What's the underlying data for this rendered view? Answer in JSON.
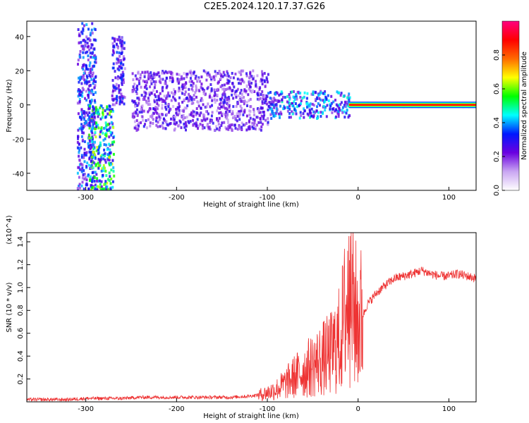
{
  "title": "C2E5.2024.120.17.37.G26",
  "chart_data": [
    {
      "type": "heatmap",
      "xlabel": "Height of straight line (km)",
      "ylabel": "Frequency (Hz)",
      "xlim": [
        -365,
        130
      ],
      "ylim": [
        -50,
        49
      ],
      "xticks": [
        -300,
        -200,
        -100,
        0,
        100
      ],
      "yticks": [
        -40,
        -20,
        0,
        20,
        40
      ],
      "colorbar": {
        "label": "Normalized spectral amplitude",
        "range": [
          0.0,
          1.0
        ],
        "ticks": [
          "0.0",
          "0.2",
          "0.4",
          "0.6",
          "0.8"
        ],
        "colors": [
          "#ffffff",
          "#c9a6f2",
          "#6a00e0",
          "#0018ff",
          "#00ffff",
          "#00ff00",
          "#ffff00",
          "#ff6a00",
          "#ff0000",
          "#ff007f"
        ]
      },
      "features": [
        {
          "x_range": [
            -310,
            -290
          ],
          "y_range": [
            -50,
            48
          ],
          "amplitude": 0.35
        },
        {
          "x_range": [
            -298,
            -270
          ],
          "y_range": [
            -50,
            0
          ],
          "amplitude": 0.55
        },
        {
          "x_range": [
            -272,
            -258
          ],
          "y_range": [
            0,
            40
          ],
          "amplitude": 0.3
        },
        {
          "x_range": [
            -250,
            -100
          ],
          "y_range": [
            -15,
            20
          ],
          "amplitude": 0.25
        },
        {
          "x_range": [
            -100,
            -10
          ],
          "y_range": [
            -8,
            8
          ],
          "amplitude": 0.4
        },
        {
          "x_range": [
            -10,
            130
          ],
          "y_range": [
            -1,
            1
          ],
          "amplitude": 0.95
        }
      ]
    },
    {
      "type": "line",
      "xlabel": "Height of straight line (km)",
      "ylabel": "SNR (10 * v/v)",
      "y_multiplier": "(x10^4)",
      "xlim": [
        -365,
        130
      ],
      "ylim": [
        0,
        1.48
      ],
      "xticks": [
        -300,
        -200,
        -100,
        0,
        100
      ],
      "yticks": [
        0.2,
        0.4,
        0.6,
        0.8,
        1.0,
        1.2,
        1.4
      ],
      "color": "#ee3333",
      "series": [
        {
          "x": [
            -365,
            -340,
            -320,
            -300,
            -280,
            -260,
            -240,
            -220,
            -200,
            -180,
            -160,
            -140,
            -120,
            -110,
            -100,
            -90,
            -80,
            -70,
            -60,
            -50,
            -40,
            -30,
            -20,
            -15,
            -10,
            -5,
            0,
            5,
            10,
            20,
            30,
            40,
            50,
            60,
            70,
            80,
            90,
            100,
            110,
            120,
            130
          ],
          "values": [
            0.02,
            0.02,
            0.02,
            0.03,
            0.03,
            0.03,
            0.04,
            0.04,
            0.04,
            0.04,
            0.04,
            0.04,
            0.05,
            0.06,
            0.08,
            0.11,
            0.16,
            0.22,
            0.27,
            0.32,
            0.37,
            0.42,
            0.55,
            0.75,
            0.95,
            0.82,
            0.7,
            0.75,
            0.85,
            0.95,
            1.02,
            1.08,
            1.1,
            1.12,
            1.15,
            1.12,
            1.1,
            1.1,
            1.12,
            1.1,
            1.08
          ]
        }
      ]
    }
  ]
}
